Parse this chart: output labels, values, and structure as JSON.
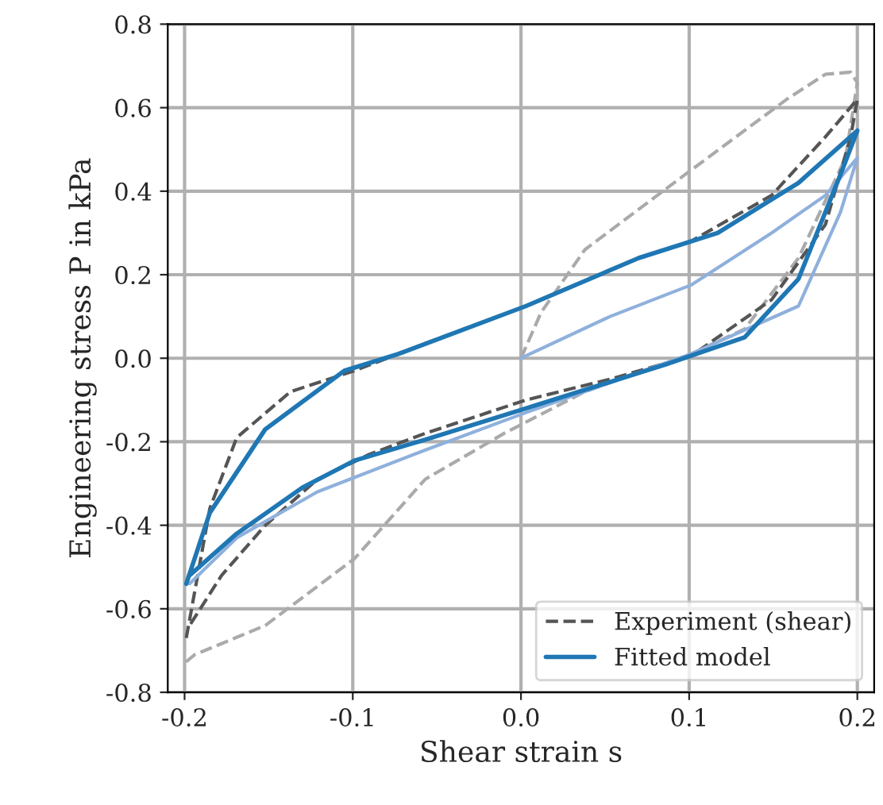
{
  "chart_data": {
    "type": "line",
    "xlabel": "Shear strain s",
    "ylabel": "Engineering stress P in kPa",
    "xlim": [
      -0.21,
      0.21
    ],
    "ylim": [
      -0.8,
      0.8
    ],
    "xticks": [
      -0.2,
      -0.1,
      {
        "value": 0,
        "label": "0.0"
      },
      0.1,
      0.2
    ],
    "yticks": [
      -0.8,
      -0.6,
      -0.4,
      -0.2,
      {
        "value": 0,
        "label": "0.0"
      },
      0.2,
      0.4,
      0.6,
      0.8
    ],
    "grid": true,
    "legend": "lower right",
    "series": [
      {
        "color": "#aaaaaa",
        "line_style": "dashed",
        "x": [
          0.0,
          0.012,
          0.038,
          0.101,
          0.158,
          0.181,
          0.196,
          0.2,
          0.193,
          0.165,
          0.133,
          0.101,
          0.038,
          -0.01,
          -0.057,
          -0.099,
          -0.152,
          -0.194,
          -0.2
        ],
        "values": [
          0.0,
          0.11,
          0.26,
          0.45,
          0.62,
          0.68,
          0.685,
          0.66,
          0.48,
          0.24,
          0.07,
          0.01,
          -0.08,
          -0.18,
          -0.29,
          -0.48,
          -0.64,
          -0.71,
          -0.73
        ]
      },
      {
        "name": "Experiment (shear)",
        "color": "#555555",
        "line_style": "dashed",
        "x": [
          -0.199,
          -0.185,
          -0.169,
          -0.137,
          -0.099,
          -0.057,
          0.003,
          0.07,
          0.101,
          0.149,
          0.181,
          0.2,
          0.196,
          0.181,
          0.149,
          0.101,
          0.053,
          0.003,
          -0.057,
          -0.09,
          -0.121,
          -0.152,
          -0.178,
          -0.197
        ],
        "values": [
          -0.67,
          -0.36,
          -0.19,
          -0.08,
          -0.03,
          0.035,
          0.125,
          0.24,
          0.28,
          0.39,
          0.53,
          0.62,
          0.53,
          0.32,
          0.14,
          0.005,
          -0.05,
          -0.1,
          -0.18,
          -0.23,
          -0.29,
          -0.4,
          -0.52,
          -0.64
        ]
      },
      {
        "color": "#8fb0dc",
        "line_style": "solid",
        "x": [
          0.0,
          0.053,
          0.101,
          0.149,
          0.181,
          0.2,
          0.19,
          0.165,
          0.101,
          0.038,
          0.003,
          -0.057,
          -0.121,
          -0.169,
          -0.197
        ],
        "values": [
          0.0,
          0.1,
          0.175,
          0.3,
          0.39,
          0.48,
          0.35,
          0.125,
          0.01,
          -0.08,
          -0.13,
          -0.22,
          -0.32,
          -0.43,
          -0.54
        ]
      },
      {
        "name": "Fitted model",
        "color": "#1f77b4",
        "line_style": "solid",
        "x": [
          -0.199,
          -0.185,
          -0.152,
          -0.105,
          -0.073,
          0.003,
          0.07,
          0.117,
          0.165,
          0.2,
          0.19,
          0.165,
          0.133,
          0.086,
          0.003,
          -0.057,
          -0.099,
          -0.13,
          -0.169,
          -0.197
        ],
        "values": [
          -0.54,
          -0.37,
          -0.17,
          -0.03,
          0.01,
          0.125,
          0.24,
          0.3,
          0.42,
          0.545,
          0.44,
          0.19,
          0.05,
          -0.015,
          -0.12,
          -0.195,
          -0.245,
          -0.31,
          -0.42,
          -0.52
        ]
      }
    ]
  }
}
